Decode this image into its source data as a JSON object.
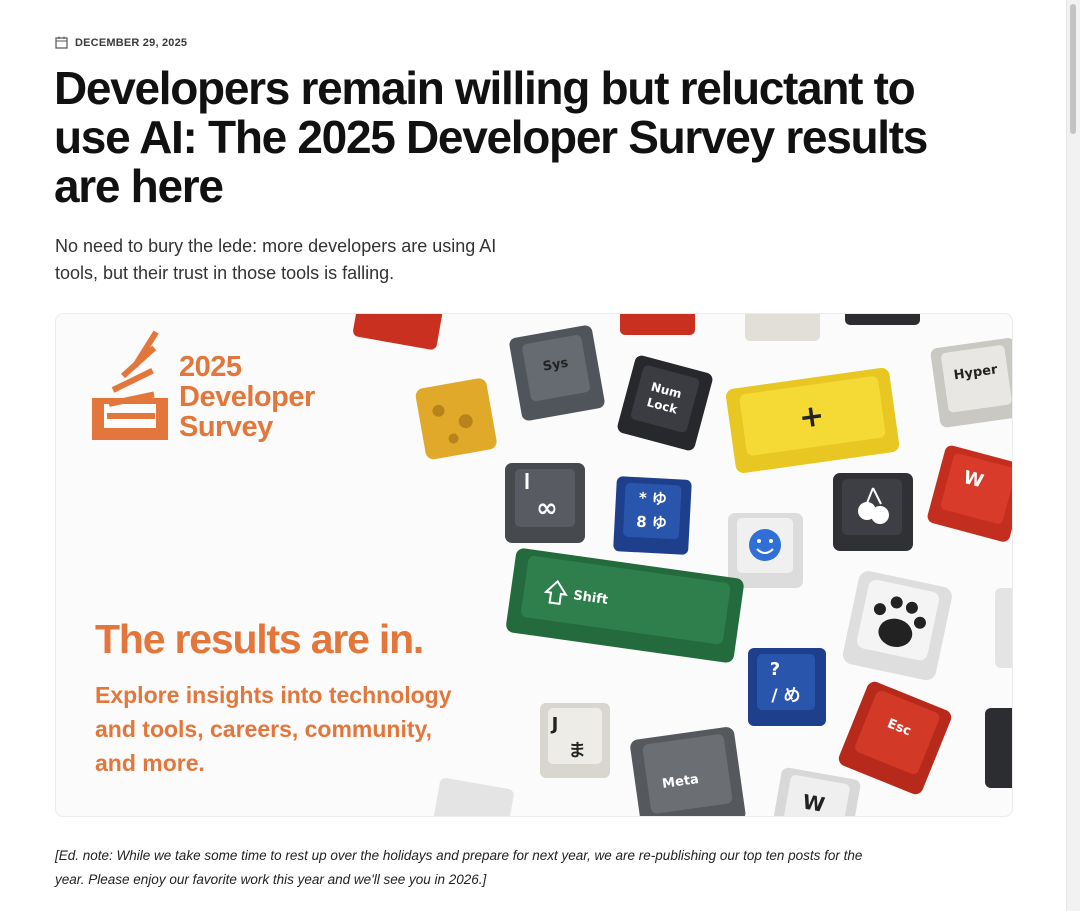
{
  "header": {
    "date": "DECEMBER 29, 2025"
  },
  "article": {
    "title_lines": [
      "Developers remain willing but reluctant to",
      "use AI: The 2025 Developer Survey results",
      "are here"
    ],
    "lede_lines": [
      "No need to bury the lede: more developers are using AI",
      "tools, but their trust in those tools is falling."
    ],
    "hero": {
      "logo_lines": [
        "2025",
        "Developer",
        "Survey"
      ],
      "headline": "The results are in.",
      "subtext_lines": [
        "Explore insights into technology",
        "and tools, careers, community,",
        "and more."
      ],
      "keycap_labels": [
        "Sys",
        "Num",
        "Lock",
        "Hyper",
        "+",
        "∞",
        "Shift",
        "Meta",
        "Esc",
        "W",
        "J",
        "ま",
        "?",
        "/ め",
        "* ゆ",
        "8 ゆ",
        "W"
      ]
    },
    "ed_note_lines": [
      "[Ed. note: While we take some time to rest up over the holidays and prepare for next year, we are re-publishing our top ten posts for the",
      "year. Please enjoy our favorite work this year and we'll see you in 2026.]"
    ]
  }
}
